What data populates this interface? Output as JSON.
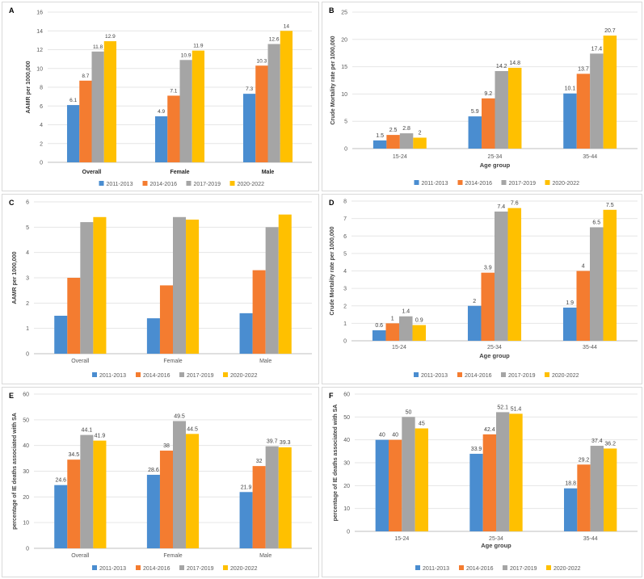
{
  "colors": {
    "s2011": "#4A8DD0",
    "s2014": "#F47C30",
    "s2017": "#A5A5A5",
    "s2020": "#FFC000",
    "grid": "#e6e6e6",
    "axis": "#bfbfbf",
    "text": "#595959"
  },
  "chart_data": [
    {
      "id": "A",
      "type": "bar",
      "letter": "A",
      "ylabel": "AAMR per 1000,000",
      "xlabel": "",
      "categories": [
        "Overall",
        "Female",
        "Male"
      ],
      "ylim": [
        0,
        16
      ],
      "ystep": 2,
      "bold_categories": true,
      "data_labels": true,
      "series": [
        {
          "name": "2011-2013",
          "values": [
            6.1,
            4.9,
            7.3
          ]
        },
        {
          "name": "2014-2016",
          "values": [
            8.7,
            7.1,
            10.3
          ]
        },
        {
          "name": "2017-2019",
          "values": [
            11.8,
            10.9,
            12.6
          ]
        },
        {
          "name": "2020-2022",
          "values": [
            12.9,
            11.9,
            14
          ]
        }
      ]
    },
    {
      "id": "B",
      "type": "bar",
      "letter": "B",
      "ylabel": "Crude Mortality rate per 1000,000",
      "xlabel": "Age group",
      "categories": [
        "15-24",
        "25-34",
        "35-44"
      ],
      "ylim": [
        0,
        25
      ],
      "ystep": 5,
      "bold_categories": false,
      "data_labels": true,
      "series": [
        {
          "name": "2011-2013",
          "values": [
            1.5,
            5.9,
            10.1
          ]
        },
        {
          "name": "2014-2016",
          "values": [
            2.5,
            9.2,
            13.7
          ]
        },
        {
          "name": "2017-2019",
          "values": [
            2.8,
            14.2,
            17.4
          ]
        },
        {
          "name": "2020-2022",
          "values": [
            2,
            14.8,
            20.7
          ]
        }
      ]
    },
    {
      "id": "C",
      "type": "bar",
      "letter": "C",
      "ylabel": "AAMR per 1000,000",
      "xlabel": "",
      "categories": [
        "Overall",
        "Female",
        "Male"
      ],
      "ylim": [
        0,
        6
      ],
      "ystep": 1,
      "bold_categories": false,
      "data_labels": false,
      "series": [
        {
          "name": "2011-2013",
          "values": [
            1.5,
            1.4,
            1.6
          ]
        },
        {
          "name": "2014-2016",
          "values": [
            3.0,
            2.7,
            3.3
          ]
        },
        {
          "name": "2017-2019",
          "values": [
            5.2,
            5.4,
            5.0
          ]
        },
        {
          "name": "2020-2022",
          "values": [
            5.4,
            5.3,
            5.5
          ]
        }
      ]
    },
    {
      "id": "D",
      "type": "bar",
      "letter": "D",
      "ylabel": "Crude Mortality rate per 1000,000",
      "xlabel": "Age group",
      "categories": [
        "15-24",
        "25-34",
        "35-44"
      ],
      "ylim": [
        0,
        8
      ],
      "ystep": 1,
      "bold_categories": false,
      "data_labels": true,
      "series": [
        {
          "name": "2011-2013",
          "values": [
            0.6,
            2,
            1.9
          ]
        },
        {
          "name": "2014-2016",
          "values": [
            1,
            3.9,
            4
          ]
        },
        {
          "name": "2017-2019",
          "values": [
            1.4,
            7.4,
            6.5
          ]
        },
        {
          "name": "2020-2022",
          "values": [
            0.9,
            7.6,
            7.5
          ]
        }
      ]
    },
    {
      "id": "E",
      "type": "bar",
      "letter": "E",
      "ylabel": "percentage of IE  deaths associated with SA",
      "xlabel": "",
      "categories": [
        "Overall",
        "Female",
        "Male"
      ],
      "ylim": [
        0,
        60
      ],
      "ystep": 10,
      "bold_categories": false,
      "data_labels": true,
      "series": [
        {
          "name": "2011-2013",
          "values": [
            24.6,
            28.6,
            21.9
          ]
        },
        {
          "name": "2014-2016",
          "values": [
            34.5,
            38,
            32
          ]
        },
        {
          "name": "2017-2019",
          "values": [
            44.1,
            49.5,
            39.7
          ]
        },
        {
          "name": "2020-2022",
          "values": [
            41.9,
            44.5,
            39.3
          ]
        }
      ]
    },
    {
      "id": "F",
      "type": "bar",
      "letter": "F",
      "ylabel": "percentage of IE  deaths associated with SA",
      "xlabel": "Age group",
      "categories": [
        "15-24",
        "25-34",
        "35-44"
      ],
      "ylim": [
        0,
        60
      ],
      "ystep": 10,
      "bold_categories": false,
      "data_labels": true,
      "series": [
        {
          "name": "2011-2013",
          "values": [
            40,
            33.9,
            18.8
          ]
        },
        {
          "name": "2014-2016",
          "values": [
            40,
            42.4,
            29.2
          ]
        },
        {
          "name": "2017-2019",
          "values": [
            50,
            52.1,
            37.4
          ]
        },
        {
          "name": "2020-2022",
          "values": [
            45,
            51.4,
            36.2
          ]
        }
      ]
    }
  ]
}
